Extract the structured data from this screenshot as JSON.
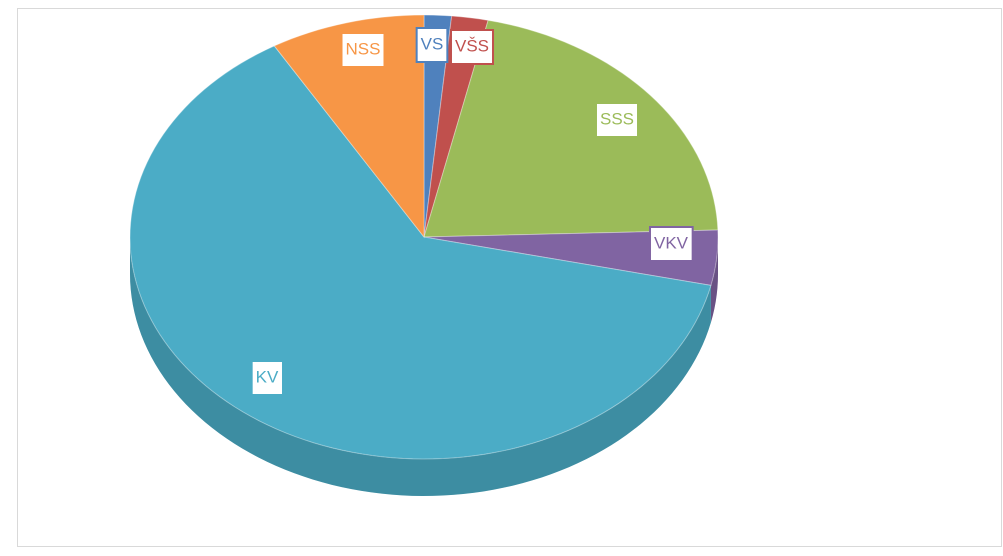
{
  "chart_data": {
    "type": "pie",
    "categories": [
      "VS",
      "VŠS",
      "SSS",
      "VKV",
      "KV",
      "NSS"
    ],
    "values": [
      1.5,
      2,
      21,
      4,
      63,
      8.5
    ],
    "colors": [
      "#4f81bd",
      "#c0504d",
      "#9bbb59",
      "#8064a2",
      "#4bacc6",
      "#f79646"
    ]
  }
}
